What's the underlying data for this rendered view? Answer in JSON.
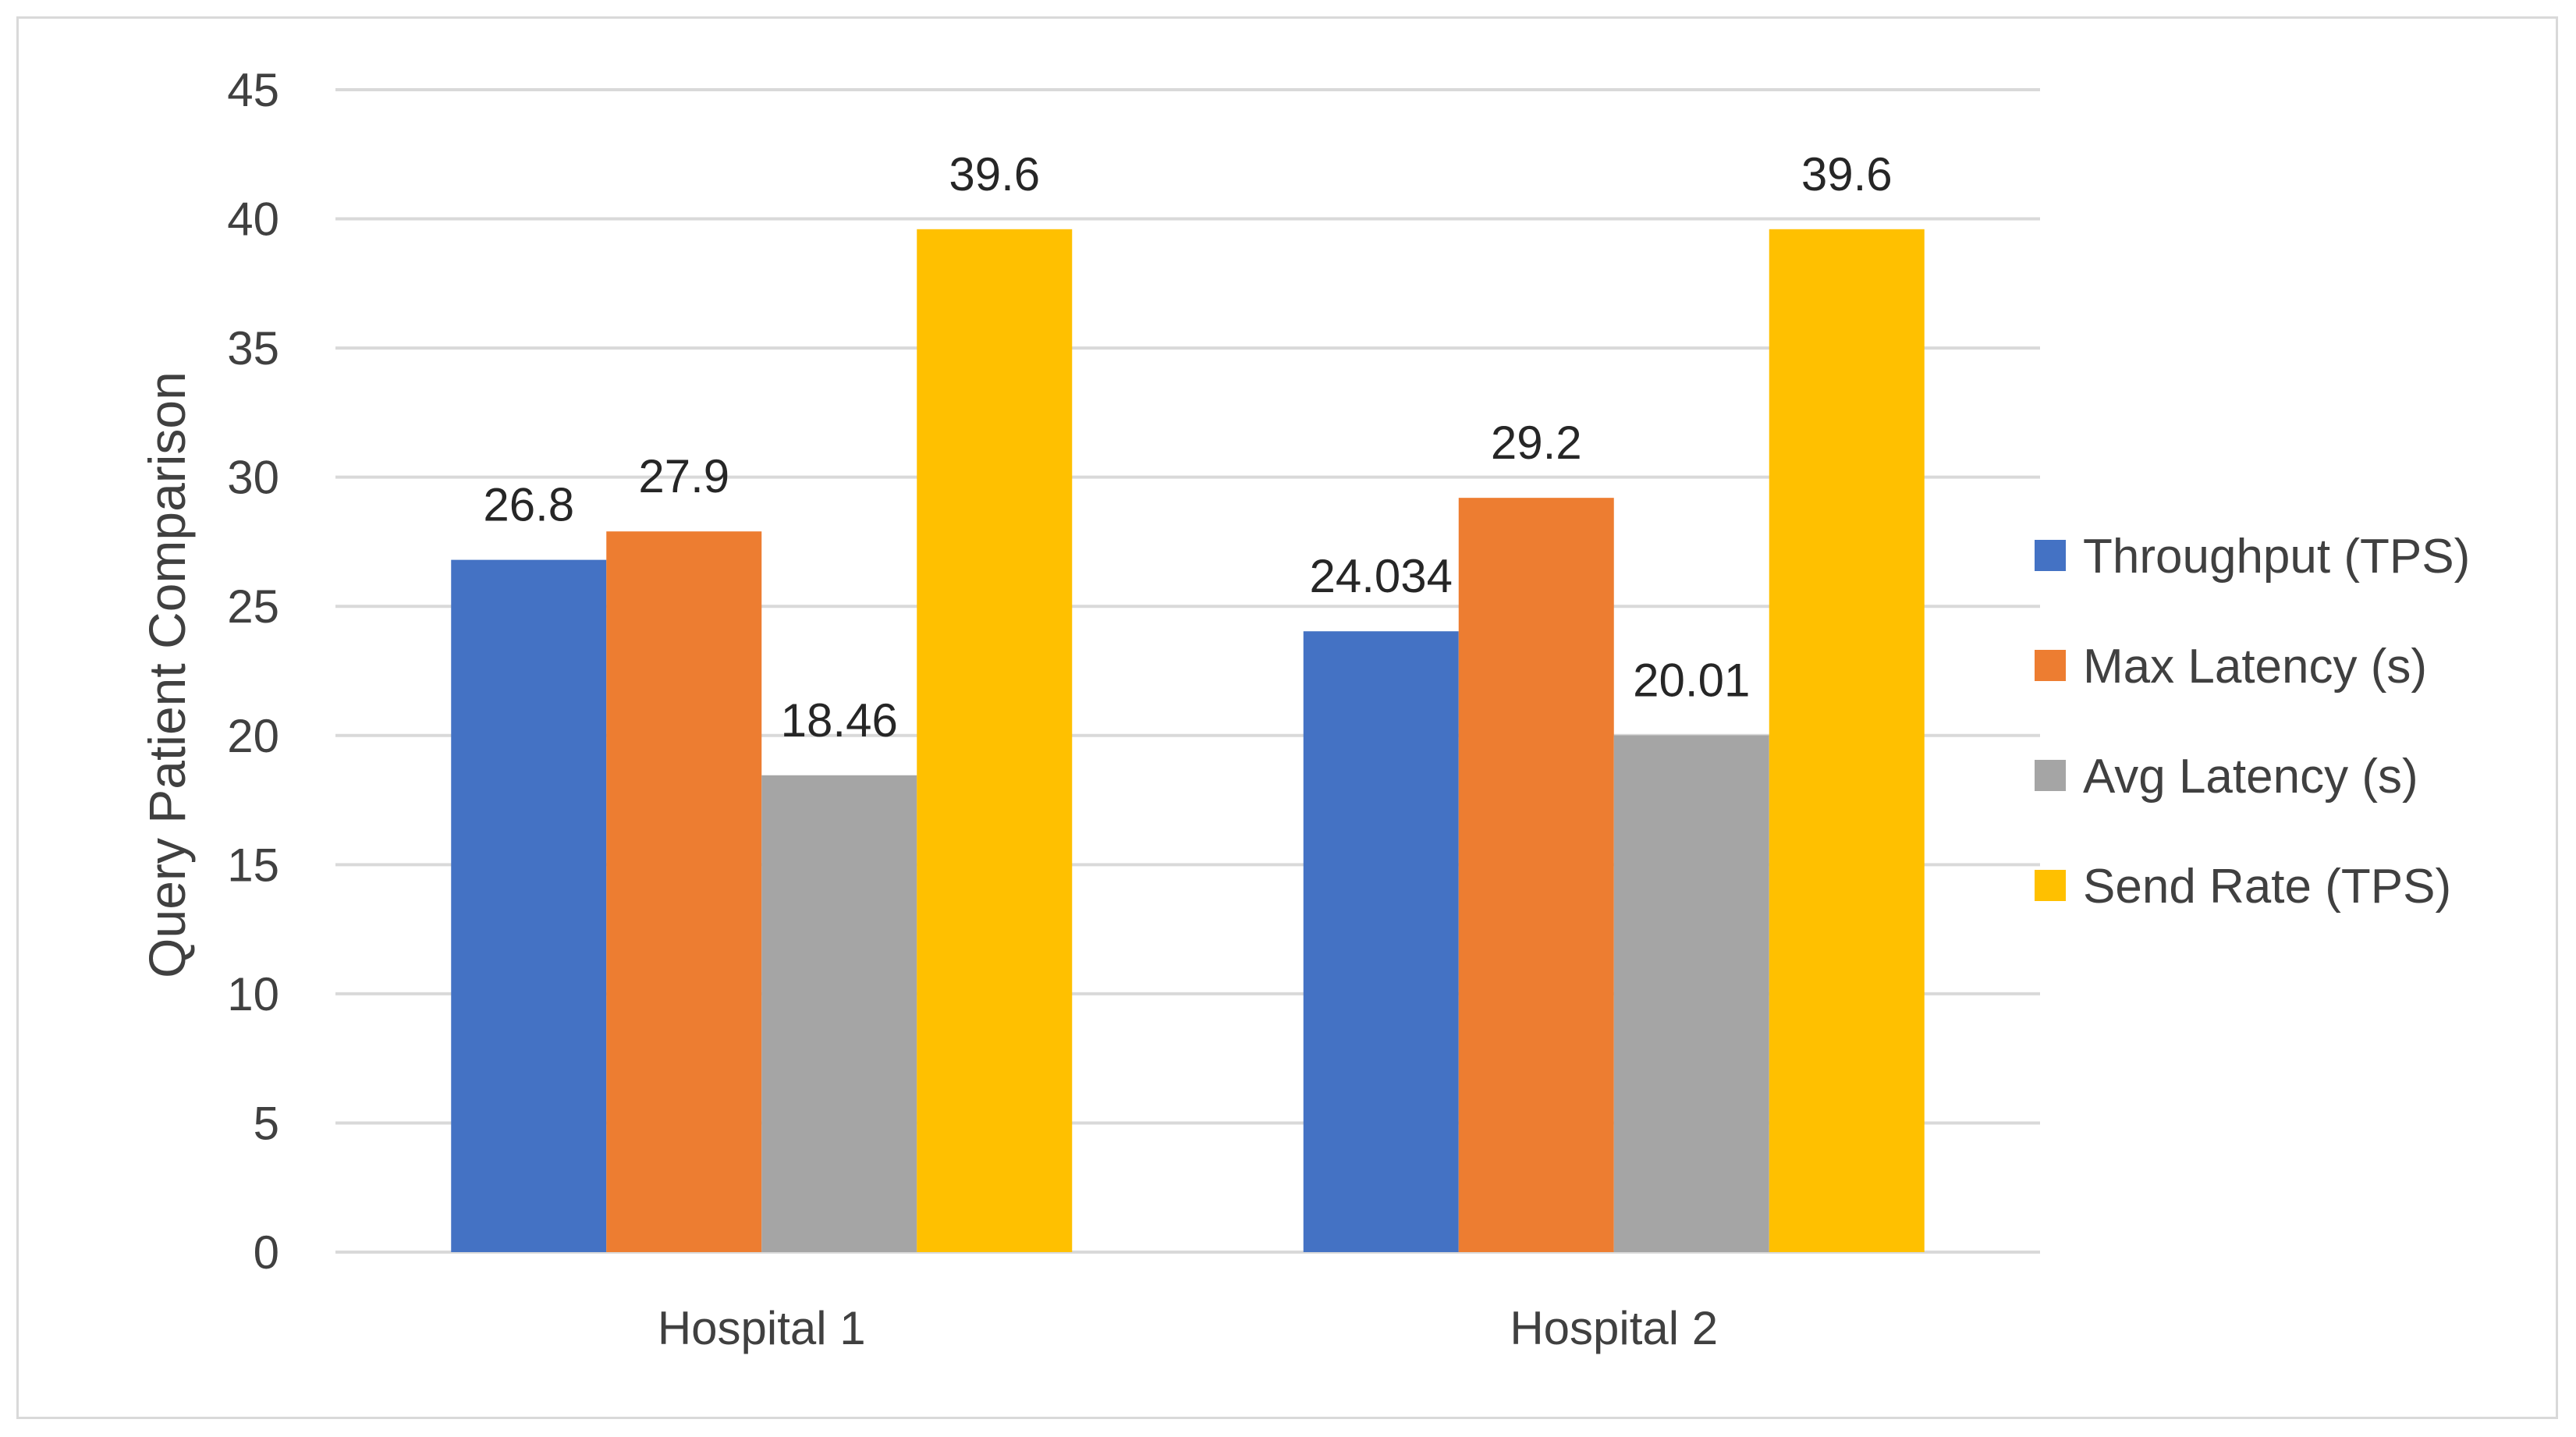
{
  "chart_data": {
    "type": "bar",
    "title": "",
    "xlabel": "",
    "ylabel": "Query  Patient Comparison",
    "ylim": [
      0,
      45
    ],
    "ytick_step": 5,
    "grid": true,
    "legend_position": "right",
    "categories": [
      "Hospital 1",
      "Hospital 2"
    ],
    "series": [
      {
        "name": "Throughput (TPS)",
        "color": "#4472C4",
        "values": [
          26.8,
          24.034
        ],
        "labels": [
          "26.8",
          "24.034"
        ]
      },
      {
        "name": "Max Latency (s)",
        "color": "#ED7D31",
        "values": [
          27.9,
          29.2
        ],
        "labels": [
          "27.9",
          "29.2"
        ]
      },
      {
        "name": "Avg Latency (s)",
        "color": "#A5A5A5",
        "values": [
          18.46,
          20.01
        ],
        "labels": [
          "18.46",
          "20.01"
        ]
      },
      {
        "name": "Send Rate (TPS)",
        "color": "#FFC000",
        "values": [
          39.6,
          39.6
        ],
        "labels": [
          "39.6",
          "39.6"
        ]
      }
    ]
  },
  "colors": {
    "gridline": "#d9d9d9",
    "frame": "#d9d9d9",
    "text": "#404040"
  }
}
